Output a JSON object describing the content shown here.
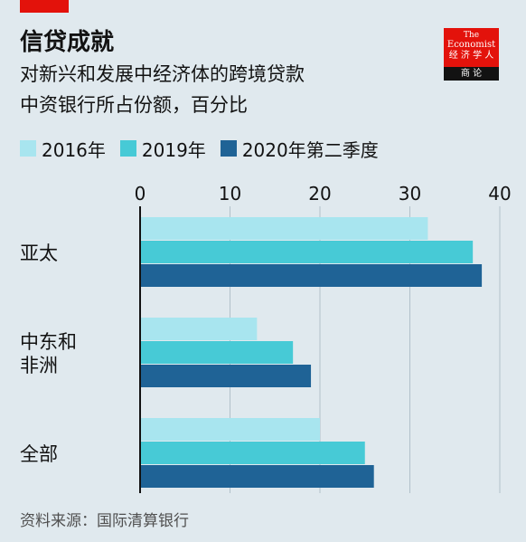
{
  "header": {
    "title": "信贷成就",
    "subtitle_line1": "对新兴和发展中经济体的跨境贷款",
    "subtitle_line2": "中资银行所占份额，百分比"
  },
  "logo": {
    "line1": "The",
    "line2": "Economist",
    "line3": "经 济 学 人",
    "band": "商  论"
  },
  "legend": [
    {
      "label": "2016年",
      "color": "#a8e5ef"
    },
    {
      "label": "2019年",
      "color": "#47cad6"
    },
    {
      "label": "2020年第二季度",
      "color": "#1f6396"
    }
  ],
  "source": "资料来源：国际清算银行",
  "colors": {
    "background": "#e0e9ee",
    "brand_red": "#e3120b",
    "grid": "#b2c1ca",
    "axis": "#121212"
  },
  "chart_data": {
    "type": "bar",
    "orientation": "horizontal",
    "title": "信贷成就",
    "subtitle": "对新兴和发展中经济体的跨境贷款中资银行所占份额，百分比",
    "categories": [
      [
        "亚太"
      ],
      [
        "中东和",
        "非洲"
      ],
      [
        "全部"
      ]
    ],
    "series": [
      {
        "name": "2016年",
        "color": "#a8e5ef",
        "values": [
          32,
          13,
          20
        ]
      },
      {
        "name": "2019年",
        "color": "#47cad6",
        "values": [
          37,
          17,
          25
        ]
      },
      {
        "name": "2020年第二季度",
        "color": "#1f6396",
        "values": [
          38,
          19,
          26
        ]
      }
    ],
    "xlim": [
      0,
      40
    ],
    "xticks": [
      0,
      10,
      20,
      30,
      40
    ],
    "xlabel": "",
    "ylabel": "",
    "grid": true,
    "legend_position": "top-left"
  }
}
